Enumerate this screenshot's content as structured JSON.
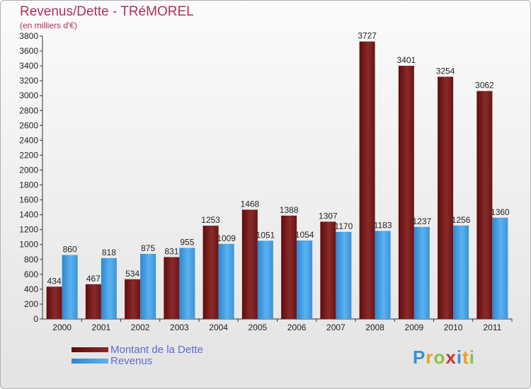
{
  "chart_data": {
    "type": "bar",
    "title": "Revenus/Dette - TRéMOREL",
    "subtitle": "(en milliers d'€)",
    "categories": [
      "2000",
      "2001",
      "2002",
      "2003",
      "2004",
      "2005",
      "2006",
      "2007",
      "2008",
      "2009",
      "2010",
      "2011"
    ],
    "series": [
      {
        "name": "Montant de la Dette",
        "color": "#7a1a1a",
        "values": [
          434,
          467,
          534,
          831,
          1253,
          1468,
          1388,
          1307,
          3727,
          3401,
          3254,
          3062
        ]
      },
      {
        "name": "Revenus",
        "color": "#4aa3e8",
        "values": [
          860,
          818,
          875,
          955,
          1009,
          1051,
          1054,
          1170,
          1183,
          1237,
          1256,
          1360
        ]
      }
    ],
    "ylim": [
      0,
      3800
    ],
    "yticks": [
      0,
      200,
      400,
      600,
      800,
      1000,
      1200,
      1400,
      1600,
      1800,
      2000,
      2200,
      2400,
      2600,
      2800,
      3000,
      3200,
      3400,
      3600,
      3800
    ],
    "grid": false,
    "legend_position": "bottom-left"
  },
  "logo": {
    "letters": [
      "P",
      "r",
      "o",
      "x",
      "i",
      "t",
      "i"
    ]
  }
}
